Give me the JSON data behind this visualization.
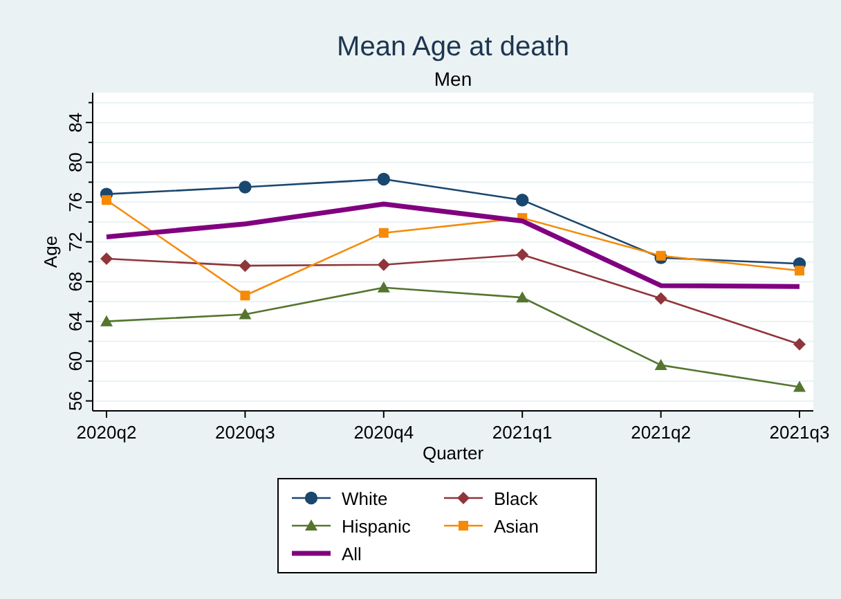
{
  "chart_data": {
    "type": "line",
    "title": "Mean Age at death",
    "subtitle": "Men",
    "xlabel": "Quarter",
    "ylabel": "Age",
    "categories": [
      "2020q2",
      "2020q3",
      "2020q4",
      "2021q1",
      "2021q2",
      "2021q3"
    ],
    "ylim": [
      55,
      87
    ],
    "yticks": [
      56,
      {
        "value": 58,
        "label": null
      },
      60,
      {
        "value": 62,
        "label": null
      },
      64,
      {
        "value": 66,
        "label": null
      },
      68,
      {
        "value": 70,
        "label": null
      },
      72,
      {
        "value": 74,
        "label": null
      },
      76,
      {
        "value": 78,
        "label": null
      },
      80,
      {
        "value": 82,
        "label": null
      },
      84,
      {
        "value": 86,
        "label": null
      }
    ],
    "grid": "y",
    "legend": "bottom",
    "series": [
      {
        "name": "White",
        "color": "#1a476f",
        "marker": "circle",
        "values": [
          76.8,
          77.5,
          78.3,
          76.2,
          70.4,
          69.8
        ]
      },
      {
        "name": "Black",
        "color": "#90353b",
        "marker": "diamond",
        "values": [
          70.3,
          69.6,
          69.7,
          70.7,
          66.3,
          61.7
        ]
      },
      {
        "name": "Hispanic",
        "color": "#55752f",
        "marker": "triangle",
        "values": [
          64.0,
          64.7,
          67.4,
          66.4,
          59.6,
          57.4
        ]
      },
      {
        "name": "Asian",
        "color": "#f58a07",
        "marker": "square",
        "values": [
          76.2,
          66.6,
          72.9,
          74.4,
          70.6,
          69.1
        ]
      },
      {
        "name": "All",
        "color": "#800080",
        "marker": "none",
        "values": [
          72.5,
          73.8,
          75.8,
          74.1,
          67.6,
          67.5
        ]
      }
    ]
  }
}
